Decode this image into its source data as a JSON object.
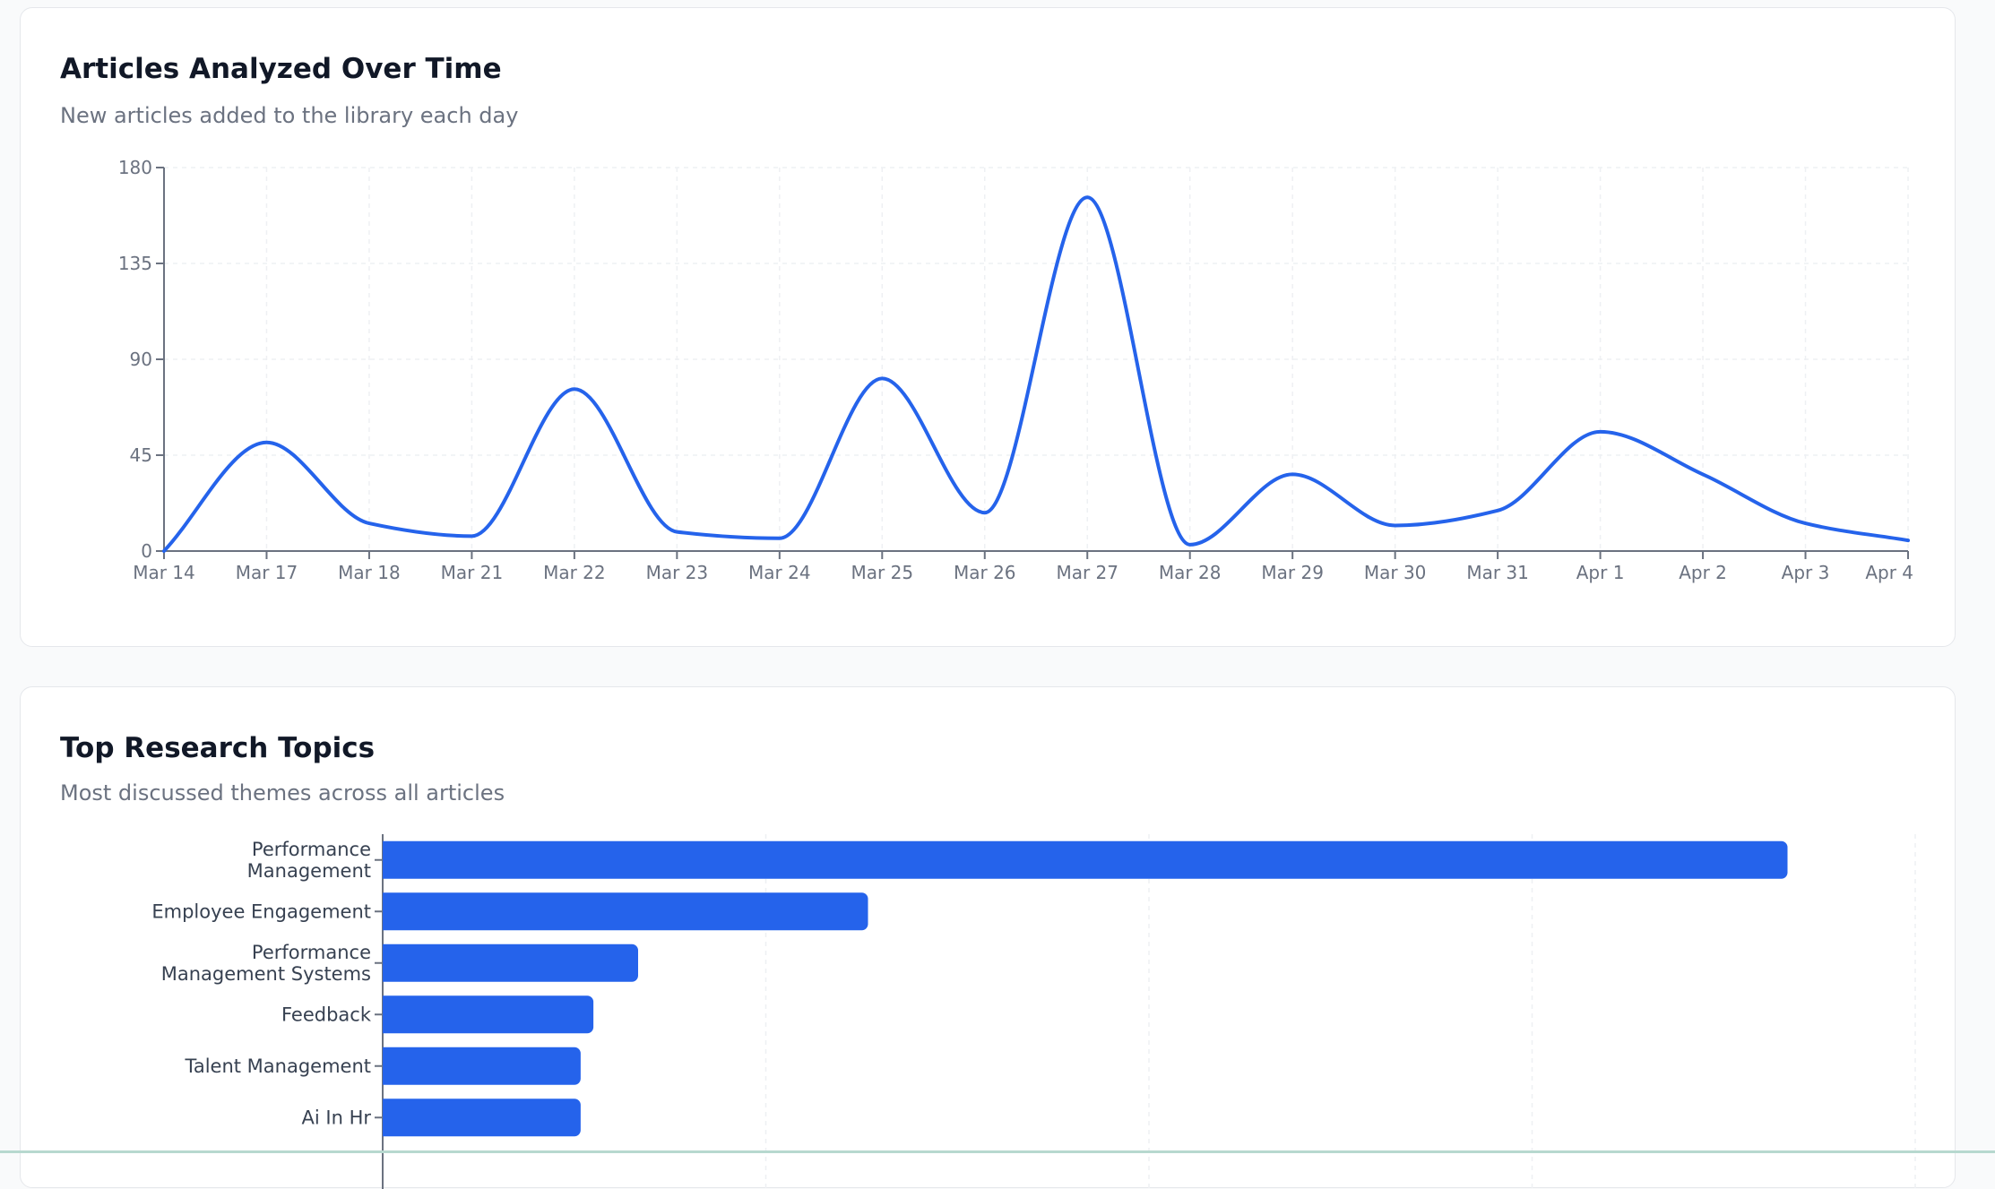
{
  "colors": {
    "accent": "#2563eb",
    "grid": "#eef0f3",
    "axis": "#6b7280"
  },
  "line_card": {
    "title": "Articles Analyzed Over Time",
    "subtitle": "New articles added to the library each day"
  },
  "bar_card": {
    "title": "Top Research Topics",
    "subtitle": "Most discussed themes across all articles"
  },
  "chart_data": [
    {
      "type": "line",
      "title": "Articles Analyzed Over Time",
      "subtitle": "New articles added to the library each day",
      "xlabel": "",
      "ylabel": "",
      "x": [
        "Mar 14",
        "Mar 17",
        "Mar 18",
        "Mar 21",
        "Mar 22",
        "Mar 23",
        "Mar 24",
        "Mar 25",
        "Mar 26",
        "Mar 27",
        "Mar 28",
        "Mar 29",
        "Mar 30",
        "Mar 31",
        "Apr 1",
        "Apr 2",
        "Apr 3",
        "Apr 4"
      ],
      "series": [
        {
          "values": [
            0,
            51,
            13,
            7,
            76,
            9,
            6,
            81,
            18,
            166,
            3,
            36,
            12,
            19,
            56,
            36,
            13,
            5
          ]
        }
      ],
      "yticks": [
        0,
        45,
        90,
        135,
        180
      ],
      "ylim": [
        0,
        180
      ],
      "grid": true,
      "smooth": true
    },
    {
      "type": "bar",
      "orientation": "horizontal",
      "title": "Top Research Topics",
      "subtitle": "Most discussed themes across all articles",
      "categories": [
        [
          "Performance",
          "Management"
        ],
        [
          "Employee Engagement"
        ],
        [
          "Performance",
          "Management Systems"
        ],
        [
          "Feedback"
        ],
        [
          "Talent Management"
        ],
        [
          "Ai In Hr"
        ]
      ],
      "values": [
        110,
        38,
        20,
        16.5,
        15.5,
        15.5
      ],
      "xlim": [
        0,
        120
      ],
      "grid": true
    }
  ]
}
